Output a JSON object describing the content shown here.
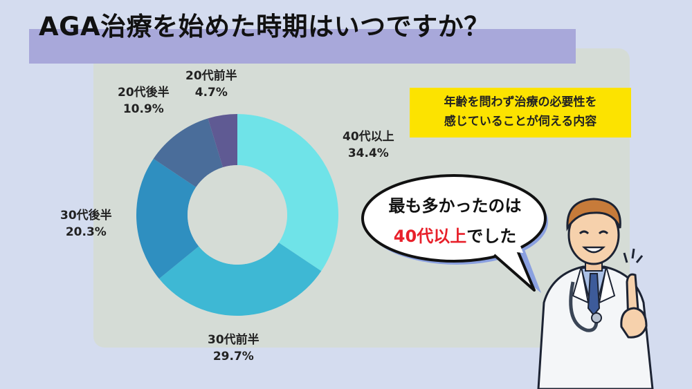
{
  "title": "AGA治療を始めた時期はいつですか？",
  "note": {
    "line1": "年齢を問わず治療の必要性を",
    "line2": "感じていることが伺える内容"
  },
  "bubble": {
    "line1": "最も多かったのは",
    "highlight": "40代以上",
    "line2_rest": "でした"
  },
  "colors": {
    "background": "#d4dcef",
    "panel": "#d5dcd6",
    "title_band": "#a8a8da",
    "note_bg": "#fce300",
    "highlight": "#e8202a"
  },
  "chart_data": {
    "type": "pie",
    "donut": true,
    "start": "top, clockwise",
    "slices": [
      {
        "label": "40代以上",
        "value": 34.4,
        "value_label": "34.4%",
        "color": "#6fe3e8"
      },
      {
        "label": "30代前半",
        "value": 29.7,
        "value_label": "29.7%",
        "color": "#3eb8d4"
      },
      {
        "label": "30代後半",
        "value": 20.3,
        "value_label": "20.3%",
        "color": "#2f8fc0"
      },
      {
        "label": "20代後半",
        "value": 10.9,
        "value_label": "10.9%",
        "color": "#4a6d9a"
      },
      {
        "label": "20代前半",
        "value": 4.7,
        "value_label": "4.7%",
        "color": "#5f5a93"
      }
    ]
  }
}
